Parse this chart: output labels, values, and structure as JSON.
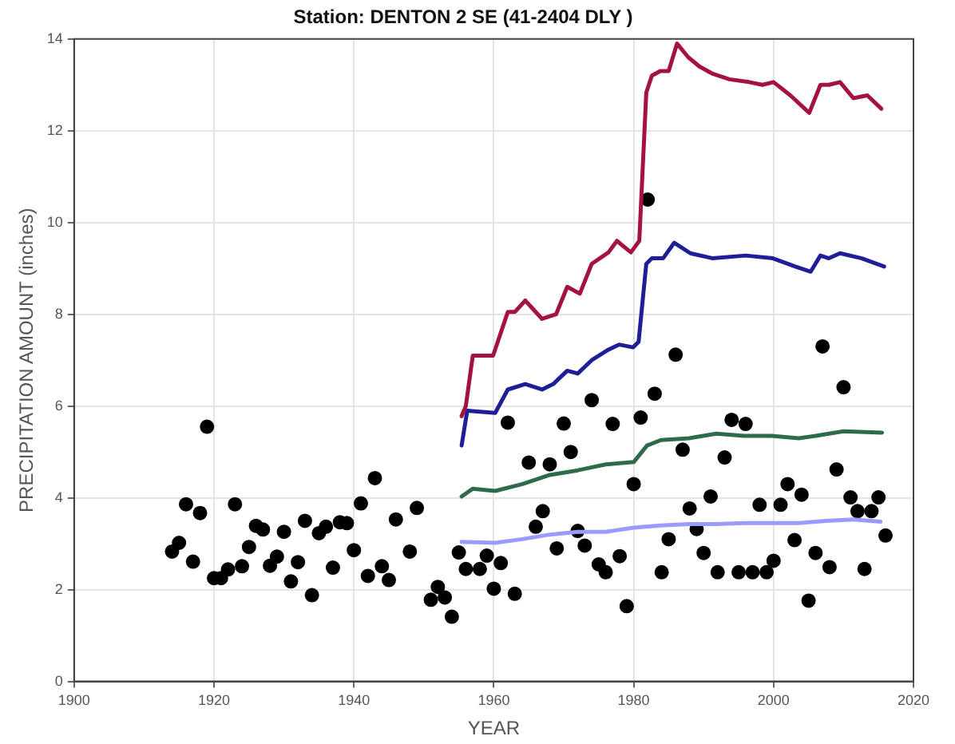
{
  "chart_data": {
    "type": "scatter",
    "title": "Station: DENTON 2 SE (41-2404 DLY )",
    "xlabel": "YEAR",
    "ylabel": "PRECIPITATION AMOUNT (inches)",
    "xlim": [
      1900,
      2020
    ],
    "xticks": [
      1900,
      1920,
      1940,
      1960,
      1980,
      2000,
      2020
    ],
    "ylim": [
      0,
      14
    ],
    "yticks": [
      0,
      2,
      4,
      6,
      8,
      10,
      12,
      14
    ],
    "grid": true,
    "series": [
      {
        "marker": "circle",
        "color": "#000000",
        "x": [
          1914,
          1915,
          1916,
          1917,
          1918,
          1919,
          1920,
          1921,
          1922,
          1923,
          1924,
          1925,
          1926,
          1927,
          1928,
          1929,
          1930,
          1931,
          1932,
          1933,
          1934,
          1935,
          1936,
          1937,
          1938,
          1939,
          1940,
          1941,
          1942,
          1943,
          1944,
          1945,
          1946,
          1948,
          1949,
          1951,
          1952,
          1953,
          1954,
          1955,
          1956,
          1958,
          1959,
          1960,
          1961,
          1962,
          1963,
          1965,
          1966,
          1967,
          1968,
          1969,
          1970,
          1971,
          1972,
          1973,
          1974,
          1975,
          1976,
          1977,
          1978,
          1979,
          1980,
          1981,
          1982,
          1983,
          1984,
          1985,
          1986,
          1987,
          1988,
          1989,
          1990,
          1991,
          1992,
          1993,
          1994,
          1995,
          1996,
          1997,
          1998,
          1999,
          2000,
          2001,
          2002,
          2003,
          2004,
          2005,
          2006,
          2007,
          2008,
          2009,
          2010,
          2011,
          2012,
          2013,
          2014,
          2015,
          2016
        ],
        "values": [
          2.83,
          3.02,
          3.86,
          2.61,
          3.67,
          5.55,
          2.25,
          2.25,
          2.44,
          3.86,
          2.51,
          2.93,
          3.39,
          3.31,
          2.52,
          2.72,
          3.26,
          2.18,
          2.6,
          3.5,
          1.88,
          3.23,
          3.37,
          2.48,
          3.47,
          3.45,
          2.86,
          3.88,
          2.3,
          4.43,
          2.51,
          2.21,
          3.53,
          2.83,
          3.78,
          1.78,
          2.06,
          1.83,
          1.41,
          2.81,
          2.45,
          2.45,
          2.74,
          2.02,
          2.58,
          5.64,
          1.91,
          4.77,
          3.37,
          3.71,
          4.73,
          2.9,
          5.62,
          5.0,
          3.28,
          2.96,
          6.13,
          2.55,
          2.38,
          5.61,
          2.73,
          1.64,
          4.3,
          5.75,
          10.5,
          6.27,
          2.38,
          3.1,
          7.12,
          5.05,
          3.77,
          3.32,
          2.8,
          4.03,
          2.38,
          4.88,
          5.7,
          2.38,
          5.61,
          2.38,
          3.85,
          2.38,
          2.63,
          3.85,
          4.3,
          3.08,
          4.07,
          1.76,
          2.8,
          7.3,
          2.49,
          4.62,
          6.41,
          4.01,
          3.71,
          2.45,
          3.71,
          4.01,
          3.18
        ]
      },
      {
        "type": "line",
        "marker": "none",
        "color": "#a4123f",
        "x": [
          1955.4,
          1956,
          1957,
          1959.9,
          1962,
          1963,
          1964.5,
          1966.9,
          1968.9,
          1970.5,
          1972.3,
          1974,
          1976.4,
          1977.6,
          1979.6,
          1980.8,
          1981.8,
          1982.6,
          1983.8,
          1985,
          1986.2,
          1987.8,
          1989.4,
          1991.3,
          1993.7,
          1996.5,
          1998.4,
          2000,
          2002.4,
          2005.1,
          2006.7,
          2007.9,
          2009.5,
          2011.4,
          2013.4,
          2015.4
        ],
        "values": [
          5.78,
          6.0,
          7.1,
          7.1,
          8.05,
          8.05,
          8.3,
          7.9,
          8.0,
          8.6,
          8.45,
          9.1,
          9.35,
          9.6,
          9.35,
          9.6,
          12.83,
          13.2,
          13.3,
          13.3,
          13.9,
          13.6,
          13.4,
          13.24,
          13.12,
          13.06,
          13.0,
          13.06,
          12.77,
          12.39,
          13.0,
          13.0,
          13.06,
          12.71,
          12.77,
          12.48
        ]
      },
      {
        "type": "line",
        "marker": "none",
        "color": "#1e1e96",
        "x": [
          1955.4,
          1956.2,
          1960.2,
          1962,
          1964.5,
          1966.9,
          1968.5,
          1970.5,
          1972,
          1974,
          1976.4,
          1977.9,
          1979.9,
          1980.7,
          1981.8,
          1982.6,
          1984.2,
          1985.8,
          1988.1,
          1991.3,
          1996,
          1999.9,
          2003.1,
          2005.3,
          2006.7,
          2007.9,
          2009.5,
          2012.6,
          2015.8
        ],
        "values": [
          5.14,
          5.9,
          5.85,
          6.36,
          6.48,
          6.36,
          6.48,
          6.77,
          6.71,
          7.0,
          7.23,
          7.34,
          7.28,
          7.4,
          9.1,
          9.22,
          9.22,
          9.56,
          9.33,
          9.22,
          9.28,
          9.22,
          9.04,
          8.93,
          9.28,
          9.22,
          9.33,
          9.22,
          9.04
        ]
      },
      {
        "type": "line",
        "marker": "none",
        "color": "#2e6b4a",
        "x": [
          1955.4,
          1957,
          1960.2,
          1964.1,
          1968,
          1972,
          1976,
          1980,
          1981.9,
          1983.9,
          1987.9,
          1991.8,
          1995.8,
          1999.7,
          2003.6,
          2006,
          2010,
          2015.5
        ],
        "values": [
          4.03,
          4.2,
          4.15,
          4.3,
          4.5,
          4.6,
          4.73,
          4.78,
          5.14,
          5.26,
          5.3,
          5.4,
          5.35,
          5.35,
          5.3,
          5.35,
          5.45,
          5.42
        ]
      },
      {
        "type": "line",
        "marker": "none",
        "color": "#9b9bff",
        "x": [
          1955.4,
          1960.2,
          1964.1,
          1968,
          1972,
          1976,
          1980,
          1983.9,
          1987.9,
          1991.8,
          1995.8,
          1999.7,
          2003.6,
          2007.5,
          2011.4,
          2015.3
        ],
        "values": [
          3.04,
          3.02,
          3.1,
          3.2,
          3.26,
          3.26,
          3.35,
          3.4,
          3.43,
          3.43,
          3.45,
          3.45,
          3.45,
          3.5,
          3.53,
          3.48
        ]
      }
    ]
  }
}
